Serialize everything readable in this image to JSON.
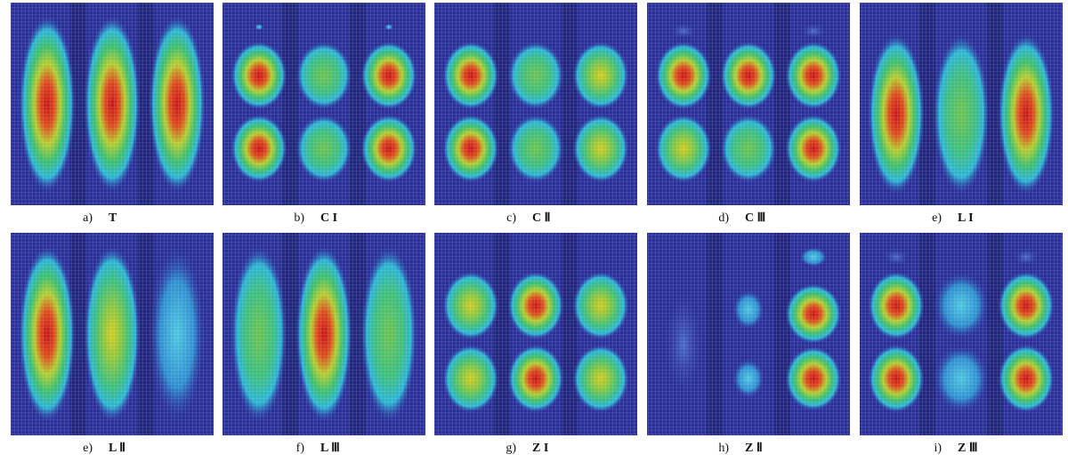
{
  "panels": [
    {
      "letter": "a)",
      "label": "T"
    },
    {
      "letter": "b)",
      "label": "C I"
    },
    {
      "letter": "c)",
      "label": "C Ⅱ"
    },
    {
      "letter": "d)",
      "label": "C Ⅲ"
    },
    {
      "letter": "e)",
      "label": "L I"
    },
    {
      "letter": "e)",
      "label": "L Ⅱ"
    },
    {
      "letter": "f)",
      "label": "L Ⅲ"
    },
    {
      "letter": "g)",
      "label": "Z I"
    },
    {
      "letter": "h)",
      "label": "Z Ⅱ"
    },
    {
      "letter": "i)",
      "label": "Z Ⅲ"
    }
  ]
}
